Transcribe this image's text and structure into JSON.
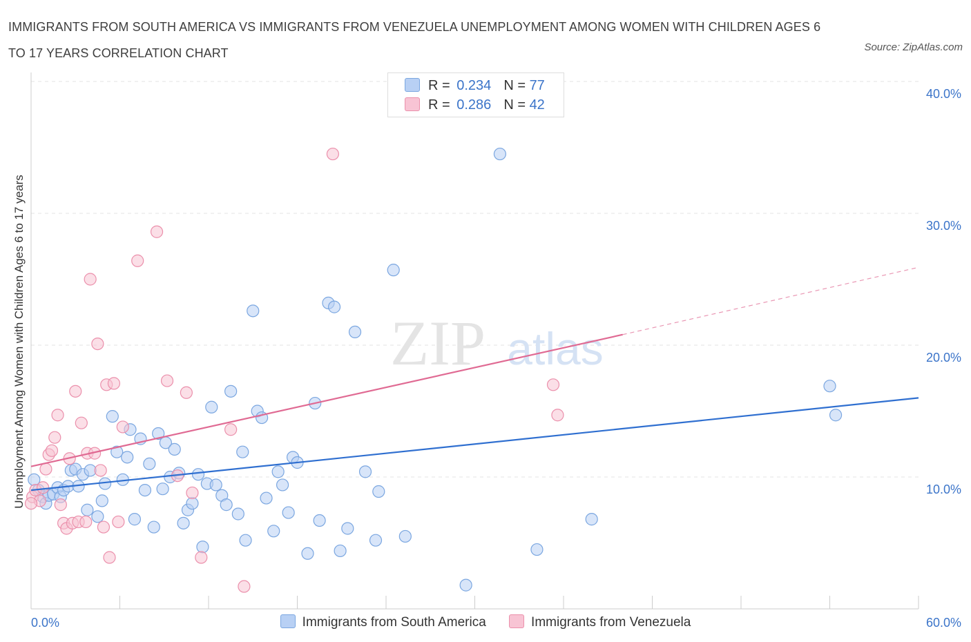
{
  "header": {
    "title": "IMMIGRANTS FROM SOUTH AMERICA VS IMMIGRANTS FROM VENEZUELA UNEMPLOYMENT AMONG WOMEN WITH CHILDREN AGES 6 TO 17 YEARS CORRELATION CHART",
    "source": "Source: ZipAtlas.com"
  },
  "legend": {
    "items": [
      {
        "r_label": "R =",
        "r_value": "0.234",
        "n_label": "N =",
        "n_value": "77"
      },
      {
        "r_label": "R =",
        "r_value": "0.286",
        "n_label": "N =",
        "n_value": "42"
      }
    ]
  },
  "watermark": {
    "zip": "ZIP",
    "atlas": "atlas"
  },
  "colors": {
    "south_america_fill": "#b8d0f4",
    "south_america_stroke": "#7aa6e0",
    "south_america_line": "#2f6fd0",
    "venezuela_fill": "#f8c4d4",
    "venezuela_stroke": "#eb8fab",
    "venezuela_line": "#e06a93",
    "axis_label": "#3b74c9"
  },
  "chart_data": {
    "type": "scatter",
    "title": "IMMIGRANTS FROM SOUTH AMERICA VS IMMIGRANTS FROM VENEZUELA UNEMPLOYMENT AMONG WOMEN WITH CHILDREN AGES 6 TO 17 YEARS CORRELATION CHART",
    "xlabel": "",
    "ylabel": "Unemployment Among Women with Children Ages 6 to 17 years",
    "xlim": [
      0,
      60
    ],
    "ylim": [
      0,
      40
    ],
    "x_ticks": [
      "0.0%",
      "60.0%"
    ],
    "y_ticks": [
      {
        "value": 10,
        "label": "10.0%"
      },
      {
        "value": 20,
        "label": "20.0%"
      },
      {
        "value": 30,
        "label": "30.0%"
      },
      {
        "value": 40,
        "label": "40.0%"
      }
    ],
    "grid": true,
    "legend_position": "bottom",
    "series": [
      {
        "name": "Immigrants from South America",
        "r": 0.234,
        "n": 77,
        "trend": {
          "x0": 0,
          "y0": 9.0,
          "x1": 60,
          "y1": 16.0
        },
        "points": [
          [
            0.2,
            9.8
          ],
          [
            0.5,
            9.0
          ],
          [
            0.8,
            8.5
          ],
          [
            1.0,
            8.0
          ],
          [
            1.2,
            8.6
          ],
          [
            1.5,
            8.7
          ],
          [
            1.8,
            9.2
          ],
          [
            2.0,
            8.5
          ],
          [
            2.2,
            9.0
          ],
          [
            2.5,
            9.3
          ],
          [
            2.7,
            10.5
          ],
          [
            3.0,
            10.6
          ],
          [
            3.2,
            9.3
          ],
          [
            3.5,
            10.2
          ],
          [
            3.8,
            7.5
          ],
          [
            4.0,
            10.5
          ],
          [
            4.5,
            7.0
          ],
          [
            4.8,
            8.2
          ],
          [
            5.0,
            9.5
          ],
          [
            5.5,
            14.6
          ],
          [
            5.8,
            11.9
          ],
          [
            6.2,
            9.8
          ],
          [
            6.5,
            11.5
          ],
          [
            6.7,
            13.6
          ],
          [
            7.0,
            6.8
          ],
          [
            7.4,
            12.9
          ],
          [
            7.7,
            9.0
          ],
          [
            8.0,
            11.0
          ],
          [
            8.3,
            6.2
          ],
          [
            8.6,
            13.3
          ],
          [
            8.9,
            9.1
          ],
          [
            9.1,
            12.6
          ],
          [
            9.4,
            10.0
          ],
          [
            9.7,
            12.1
          ],
          [
            10.0,
            10.3
          ],
          [
            10.3,
            6.5
          ],
          [
            10.6,
            7.5
          ],
          [
            10.9,
            8.0
          ],
          [
            11.3,
            10.2
          ],
          [
            11.6,
            4.7
          ],
          [
            11.9,
            9.5
          ],
          [
            12.2,
            15.3
          ],
          [
            12.5,
            9.4
          ],
          [
            12.9,
            8.6
          ],
          [
            13.2,
            7.9
          ],
          [
            13.5,
            16.5
          ],
          [
            14.0,
            7.2
          ],
          [
            14.3,
            11.9
          ],
          [
            14.5,
            5.2
          ],
          [
            15.0,
            22.6
          ],
          [
            15.3,
            15.0
          ],
          [
            15.6,
            14.5
          ],
          [
            15.9,
            8.4
          ],
          [
            16.4,
            5.9
          ],
          [
            16.7,
            10.4
          ],
          [
            17.0,
            9.4
          ],
          [
            17.4,
            7.3
          ],
          [
            17.7,
            11.5
          ],
          [
            18.0,
            11.1
          ],
          [
            18.7,
            4.2
          ],
          [
            19.2,
            15.6
          ],
          [
            19.5,
            6.7
          ],
          [
            20.1,
            23.2
          ],
          [
            20.5,
            22.9
          ],
          [
            20.9,
            4.4
          ],
          [
            21.4,
            6.1
          ],
          [
            21.9,
            21.0
          ],
          [
            22.6,
            10.4
          ],
          [
            23.3,
            5.2
          ],
          [
            23.5,
            8.9
          ],
          [
            24.5,
            25.7
          ],
          [
            25.3,
            5.5
          ],
          [
            29.4,
            1.8
          ],
          [
            31.7,
            34.5
          ],
          [
            34.2,
            4.5
          ],
          [
            37.9,
            6.8
          ],
          [
            54.0,
            16.9
          ],
          [
            54.4,
            14.7
          ]
        ]
      },
      {
        "name": "Immigrants from Venezuela",
        "r": 0.286,
        "n": 42,
        "trend": {
          "x0": 0,
          "y0": 10.8,
          "x1": 40,
          "y1": 20.8,
          "dash_x1": 60,
          "dash_y1": 25.9
        },
        "points": [
          [
            0.1,
            8.5
          ],
          [
            0.3,
            9.0
          ],
          [
            0.6,
            8.2
          ],
          [
            0.8,
            9.2
          ],
          [
            1.0,
            10.6
          ],
          [
            1.2,
            11.7
          ],
          [
            1.4,
            12.0
          ],
          [
            1.6,
            13.0
          ],
          [
            1.8,
            14.7
          ],
          [
            2.0,
            7.9
          ],
          [
            2.2,
            6.5
          ],
          [
            2.4,
            6.1
          ],
          [
            2.6,
            11.4
          ],
          [
            2.8,
            6.5
          ],
          [
            3.0,
            16.5
          ],
          [
            3.2,
            6.6
          ],
          [
            3.4,
            14.1
          ],
          [
            3.7,
            6.6
          ],
          [
            3.8,
            11.8
          ],
          [
            4.0,
            25.0
          ],
          [
            4.3,
            11.8
          ],
          [
            4.5,
            20.1
          ],
          [
            4.7,
            10.5
          ],
          [
            4.9,
            6.2
          ],
          [
            5.1,
            17.0
          ],
          [
            5.3,
            3.9
          ],
          [
            5.6,
            17.1
          ],
          [
            5.9,
            6.6
          ],
          [
            6.2,
            13.8
          ],
          [
            7.2,
            26.4
          ],
          [
            8.5,
            28.6
          ],
          [
            9.2,
            17.3
          ],
          [
            9.9,
            10.1
          ],
          [
            10.5,
            16.4
          ],
          [
            10.9,
            8.8
          ],
          [
            11.5,
            3.9
          ],
          [
            13.5,
            13.6
          ],
          [
            14.4,
            1.7
          ],
          [
            20.4,
            34.5
          ],
          [
            35.3,
            17.0
          ],
          [
            35.6,
            14.7
          ],
          [
            0.0,
            8.0
          ]
        ]
      }
    ]
  },
  "bottom_legend": {
    "items": [
      "Immigrants from South America",
      "Immigrants from Venezuela"
    ]
  }
}
